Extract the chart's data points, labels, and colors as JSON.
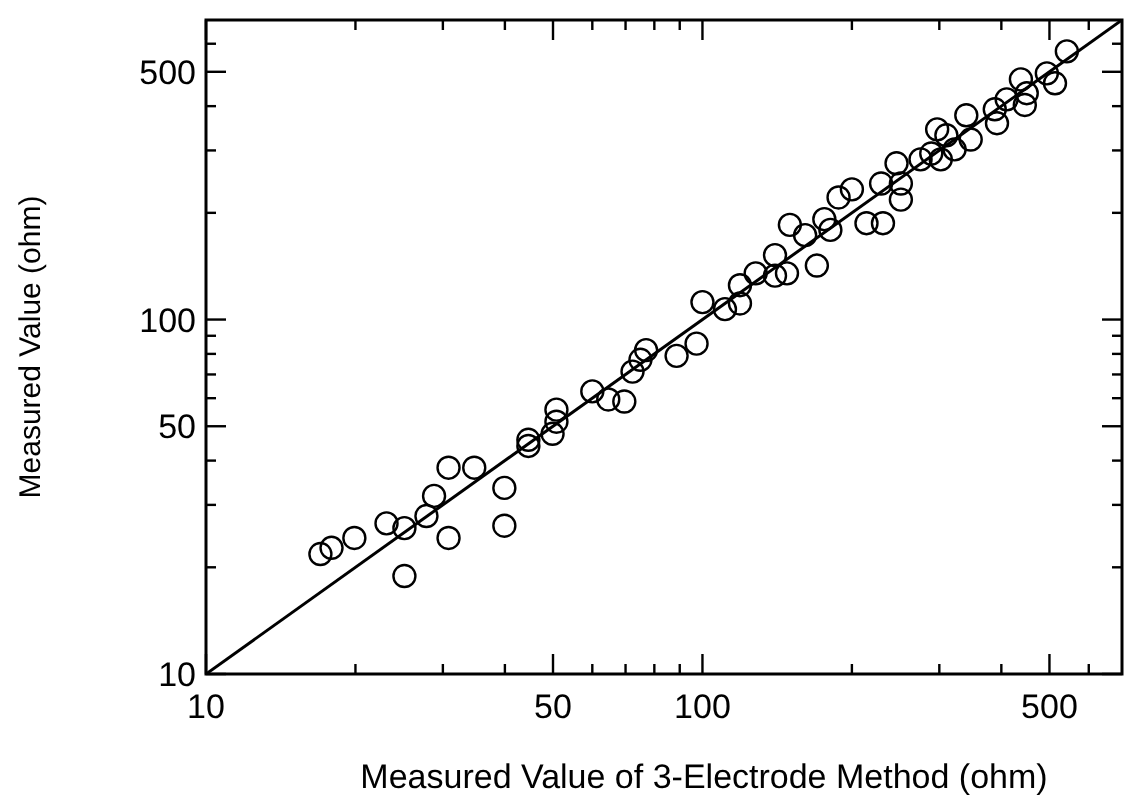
{
  "chart_data": {
    "type": "scatter",
    "xlabel": "Measured Value of 3-Electrode Method (ohm)",
    "ylabel": "Measured Value (ohm)",
    "log": "xy",
    "grid": false,
    "xlim": [
      10,
      700
    ],
    "ylim": [
      10,
      700
    ],
    "xticks": [
      10,
      {
        "value": 20,
        "label": null
      },
      {
        "value": 30,
        "label": null
      },
      {
        "value": 40,
        "label": null
      },
      50,
      {
        "value": 60,
        "label": null
      },
      {
        "value": 70,
        "label": null
      },
      {
        "value": 80,
        "label": null
      },
      {
        "value": 90,
        "label": null
      },
      100,
      {
        "value": 200,
        "label": null
      },
      {
        "value": 300,
        "label": null
      },
      {
        "value": 400,
        "label": null
      },
      500,
      {
        "value": 600,
        "label": null
      }
    ],
    "yticks": [
      10,
      {
        "value": 20,
        "label": null
      },
      {
        "value": 30,
        "label": null
      },
      {
        "value": 40,
        "label": null
      },
      50,
      {
        "value": 60,
        "label": null
      },
      {
        "value": 70,
        "label": null
      },
      {
        "value": 80,
        "label": null
      },
      {
        "value": 90,
        "label": null
      },
      100,
      {
        "value": 200,
        "label": null
      },
      {
        "value": 300,
        "label": null
      },
      {
        "value": 400,
        "label": null
      },
      500,
      {
        "value": 600,
        "label": null
      }
    ],
    "series": [
      {
        "marker": "circle",
        "color": "#000000",
        "x": [
          17,
          17.9,
          19.9,
          23.1,
          25.1,
          25.1,
          27.8,
          28.8,
          30.8,
          30.8,
          34.7,
          39.9,
          39.9,
          44.6,
          44.6,
          49.9,
          50.8,
          50.8,
          60,
          64.6,
          69.6,
          72.3,
          77,
          75,
          88.7,
          97.3,
          100,
          111,
          119,
          119,
          128,
          140,
          140,
          148,
          150,
          161,
          170,
          176,
          181,
          188,
          200,
          214,
          231,
          229,
          246,
          251,
          251,
          275,
          289,
          297,
          310,
          302,
          322,
          347,
          340,
          388,
          392,
          410,
          438,
          446,
          450,
          494,
          513,
          542
        ],
        "values": [
          21.8,
          22.7,
          24.2,
          26.6,
          25.8,
          18.9,
          27.9,
          31.8,
          24.2,
          38.2,
          38.2,
          33.5,
          26.2,
          45.8,
          44,
          47.6,
          55.7,
          51.5,
          62.7,
          59.5,
          58.7,
          71.3,
          82,
          77,
          79,
          85.5,
          112,
          107,
          111,
          125,
          135,
          152,
          133,
          135,
          185,
          173,
          142,
          192,
          179,
          221,
          233,
          187,
          187,
          242,
          276,
          218,
          242,
          283,
          294,
          344,
          331,
          283,
          302,
          322,
          377,
          392,
          358,
          418,
          476,
          403,
          435,
          495,
          464,
          571
        ]
      },
      {
        "type": "line",
        "line_style": "solid",
        "color": "#000000",
        "x": [
          10,
          700
        ],
        "values": [
          10,
          700
        ]
      }
    ]
  }
}
